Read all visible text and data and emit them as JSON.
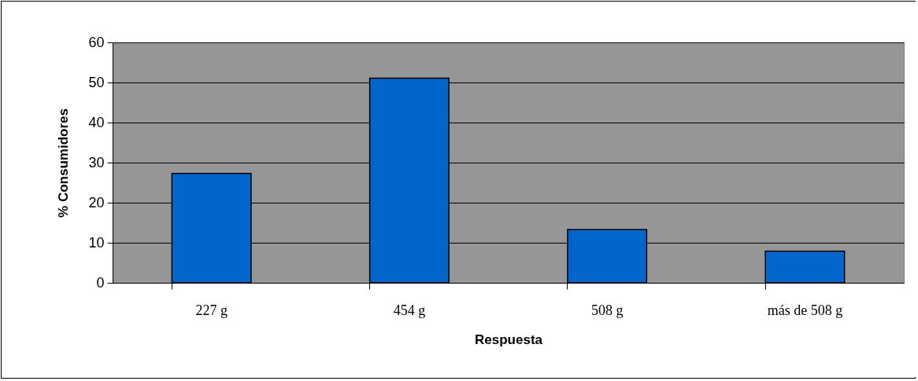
{
  "chart_data": {
    "type": "bar",
    "xlabel": "Respuesta",
    "ylabel": "% Consumidores",
    "categories": [
      "227 g",
      "454 g",
      "508 g",
      "más de 508 g"
    ],
    "values": [
      27.3,
      51.1,
      13.3,
      7.9
    ],
    "color": "#0066cc",
    "ylim": [
      0,
      60
    ],
    "yticks": [
      0,
      10,
      20,
      30,
      40,
      50,
      60
    ],
    "grid": "y"
  }
}
